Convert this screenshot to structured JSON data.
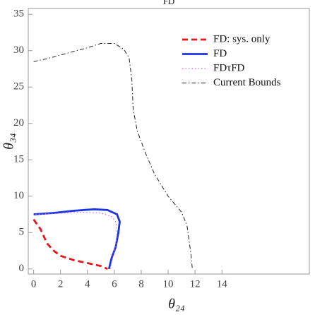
{
  "chart_data": {
    "type": "line",
    "title": "FD",
    "x_label": "θ₂₄",
    "y_label": "θ₃₄",
    "xlim": [
      -0.4,
      20.5
    ],
    "ylim": [
      -0.7,
      35.8
    ],
    "xticks": [
      0,
      2,
      4,
      6,
      8,
      10,
      12,
      14
    ],
    "yticks": [
      0,
      5,
      10,
      15,
      20,
      25,
      30,
      35
    ],
    "legend": "top-right",
    "series": [
      {
        "name": "FD: sys. only",
        "color": "#e8141c",
        "dash": "dashed",
        "x": [
          0,
          0.5,
          1,
          1.5,
          2,
          3,
          4,
          5,
          5.5
        ],
        "values": [
          6.8,
          5.5,
          3.5,
          2.5,
          1.8,
          1.2,
          0.8,
          0.4,
          0
        ]
      },
      {
        "name": "FD",
        "color": "#1a33e0",
        "dash": "solid",
        "x": [
          5.6,
          5.8,
          6.1,
          6.3,
          6.4,
          6.2,
          5.5,
          4.5,
          3,
          1.5,
          0
        ],
        "values": [
          0,
          1.5,
          3,
          5,
          6.5,
          7.5,
          8.1,
          8.2,
          8,
          7.7,
          7.5
        ]
      },
      {
        "name": "FDτFD",
        "color": "#d46ad0",
        "dash": "dotted",
        "x": [
          5.7,
          5.8,
          6.1,
          6.2,
          6.1,
          5.8,
          5,
          3.5,
          1.5,
          0
        ],
        "values": [
          0,
          1,
          3,
          5,
          6.5,
          7.2,
          7.7,
          7.8,
          7.6,
          7.5
        ]
      },
      {
        "name": "Current Bounds",
        "color": "#222222",
        "dash": "dashdot",
        "x": [
          0,
          1,
          2,
          3,
          4,
          5,
          6,
          6.7,
          7.1,
          7.3,
          7.4,
          7.7,
          8.3,
          9,
          10,
          11,
          11.4,
          11.7,
          11.8
        ],
        "values": [
          28.5,
          28.9,
          29.4,
          29.9,
          30.4,
          31,
          31,
          30.2,
          29,
          26,
          22,
          19,
          16,
          13,
          10,
          7.8,
          6,
          2,
          0
        ]
      }
    ]
  }
}
